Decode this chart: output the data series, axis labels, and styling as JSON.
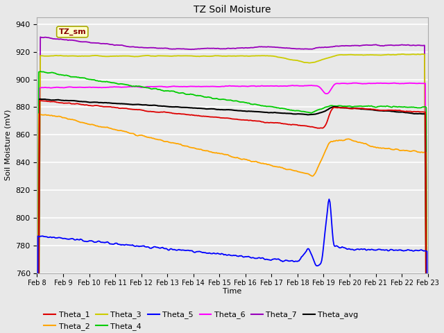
{
  "title": "TZ Soil Moisture",
  "xlabel": "Time",
  "ylabel": "Soil Moisture (mV)",
  "ylim": [
    760,
    945
  ],
  "background_color": "#e8e8e8",
  "series_colors": {
    "Theta_1": "#dd0000",
    "Theta_2": "#ffa500",
    "Theta_3": "#cccc00",
    "Theta_4": "#00cc00",
    "Theta_5": "#0000ff",
    "Theta_6": "#ff00ff",
    "Theta_7": "#9900bb",
    "Theta_avg": "#000000"
  },
  "x_tick_labels": [
    "Feb 8",
    "Feb 9",
    "Feb 10",
    "Feb 11",
    "Feb 12",
    "Feb 13",
    "Feb 14",
    "Feb 15",
    "Feb 16",
    "Feb 17",
    "Feb 18",
    "Feb 19",
    "Feb 20",
    "Feb 21",
    "Feb 22",
    "Feb 23"
  ],
  "n_points": 480,
  "figsize": [
    6.4,
    4.8
  ],
  "dpi": 100
}
